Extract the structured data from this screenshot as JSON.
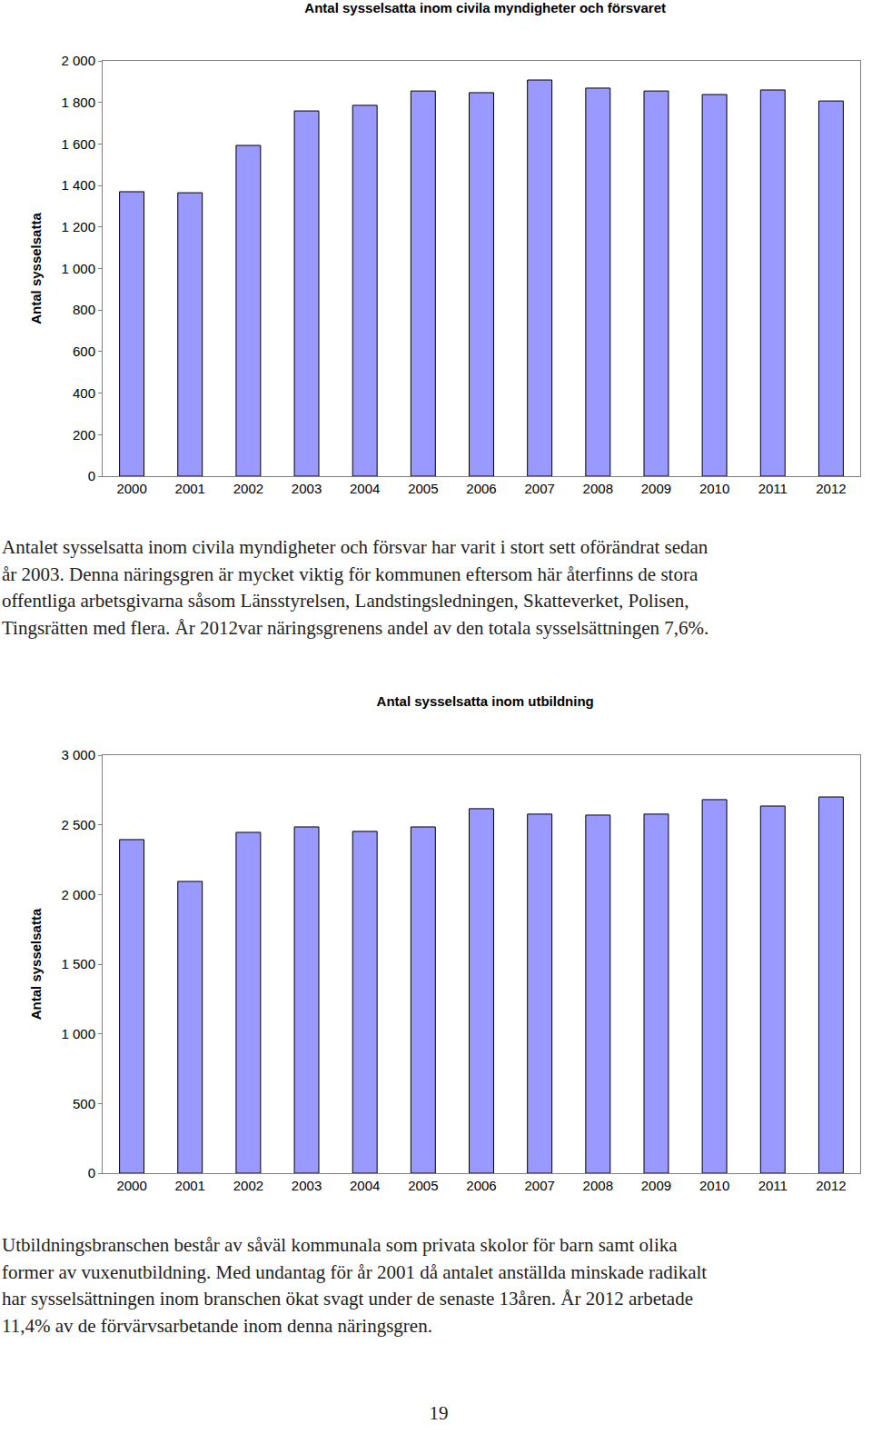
{
  "chart_data": [
    {
      "type": "bar",
      "title": "Antal sysselsatta inom civila myndigheter och försvaret",
      "y_label": "Antal sysselsatta",
      "categories": [
        "2000",
        "2001",
        "2002",
        "2003",
        "2004",
        "2005",
        "2006",
        "2007",
        "2008",
        "2009",
        "2010",
        "2011",
        "2012"
      ],
      "values": [
        1370,
        1365,
        1593,
        1759,
        1786,
        1855,
        1847,
        1908,
        1869,
        1855,
        1838,
        1860,
        1807
      ],
      "color": "#9999ff",
      "ylim": [
        0,
        2000
      ],
      "yticks": [
        0,
        200,
        400,
        600,
        800,
        {
          "value": 1000,
          "label": "1 000"
        },
        {
          "value": 1200,
          "label": "1 200"
        },
        {
          "value": 1400,
          "label": "1 400"
        },
        {
          "value": 1600,
          "label": "1 600"
        },
        {
          "value": 1800,
          "label": "1 800"
        },
        {
          "value": 2000,
          "label": "2 000"
        }
      ],
      "grid": false
    },
    {
      "type": "bar",
      "title": "Antal sysselsatta inom utbildning",
      "y_label": "Antal sysselsatta",
      "categories": [
        "2000",
        "2001",
        "2002",
        "2003",
        "2004",
        "2005",
        "2006",
        "2007",
        "2008",
        "2009",
        "2010",
        "2011",
        "2012"
      ],
      "values": [
        2394,
        2094,
        2446,
        2485,
        2453,
        2485,
        2616,
        2577,
        2570,
        2577,
        2681,
        2635,
        2700
      ],
      "color": "#9999ff",
      "ylim": [
        0,
        3000
      ],
      "yticks": [
        0,
        500,
        {
          "value": 1000,
          "label": "1 000"
        },
        {
          "value": 1500,
          "label": "1 500"
        },
        {
          "value": 2000,
          "label": "2 000"
        },
        {
          "value": 2500,
          "label": "2 500"
        },
        {
          "value": 3000,
          "label": "3 000"
        }
      ],
      "grid": false
    }
  ],
  "paragraphs": [
    [
      "Antalet sysselsatta inom civila myndigheter och försvar har varit i stort sett oförändrat sedan",
      "år 2003. Denna näringsgren är mycket viktig för kommunen eftersom här återfinns de stora",
      "offentliga arbetsgivarna såsom Länsstyrelsen, Landstingsledningen, Skatteverket, Polisen,",
      "Tingsrätten med flera. År 2012var näringsgrenens andel av den totala sysselsättningen 7,6%."
    ],
    [
      "Utbildningsbranschen består av såväl kommunala som privata skolor för barn samt olika",
      "former av vuxenutbildning. Med undantag för år 2001 då antalet anställda minskade radikalt",
      "har sysselsättningen inom branschen ökat svagt under de senaste 13åren. År 2012 arbetade",
      "11,4% av de förvärvsarbetande inom denna näringsgren."
    ]
  ],
  "page_number": "19"
}
